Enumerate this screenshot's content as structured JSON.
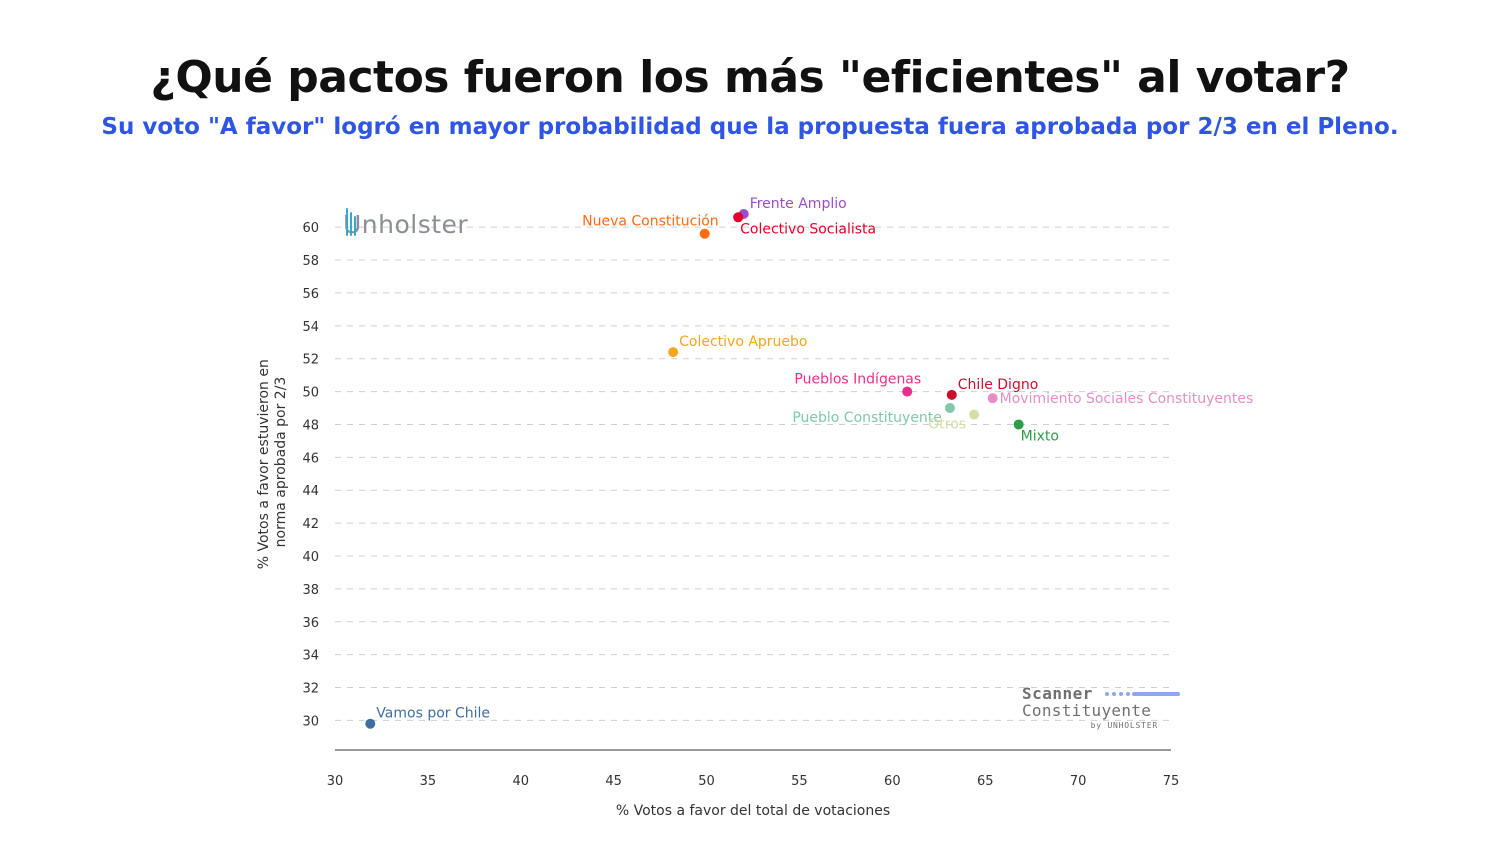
{
  "title": "¿Qué pactos fueron los más \"eficientes\" al votar?",
  "subtitle": "Su voto \"A favor\" logró en mayor probabilidad que la propuesta fuera aprobada por 2/3 en el Pleno.",
  "logos": {
    "unholster": "Unholster",
    "scanner_line1": "Scanner",
    "scanner_line2": "Constituyente",
    "scanner_line3": "by UNHOLSTER"
  },
  "chart_data": {
    "type": "scatter",
    "title": "¿Qué pactos fueron los más \"eficientes\" al votar?",
    "subtitle": "Su voto \"A favor\" logró en mayor probabilidad que la propuesta fuera aprobada por 2/3 en el Pleno.",
    "xlabel": "% Votos a favor del total de votaciones",
    "ylabel_line1": "% Votos a favor estuvieron en",
    "ylabel_line2": "norma aprobada por 2/3",
    "xlim": [
      30,
      75
    ],
    "ylim": [
      28.2,
      62.2
    ],
    "xticks": [
      30,
      35,
      40,
      45,
      50,
      55,
      60,
      65,
      70,
      75
    ],
    "yticks": [
      30,
      32,
      34,
      36,
      38,
      40,
      42,
      44,
      46,
      48,
      50,
      52,
      54,
      56,
      58,
      60
    ],
    "grid": "horizontal-dashed",
    "legend": "none (direct labels)",
    "points": [
      {
        "name": "Frente Amplio",
        "x": 52.0,
        "y": 60.8,
        "color": "#9b4dca",
        "label_pos": "upper-right"
      },
      {
        "name": "Colectivo Socialista",
        "x": 51.7,
        "y": 60.6,
        "color": "#e4002b",
        "label_pos": "lower-right"
      },
      {
        "name": "Nueva Constitución",
        "x": 49.9,
        "y": 59.6,
        "color": "#ff6a13",
        "label_pos": "upper-left"
      },
      {
        "name": "Colectivo Apruebo",
        "x": 48.2,
        "y": 52.4,
        "color": "#f7a51c",
        "label_pos": "upper-right"
      },
      {
        "name": "Pueblos Indígenas",
        "x": 60.8,
        "y": 50.0,
        "color": "#e6308a",
        "label_pos": "upper-left"
      },
      {
        "name": "Chile Digno",
        "x": 63.2,
        "y": 49.8,
        "color": "#c8102e",
        "label_pos": "upper-right"
      },
      {
        "name": "Movimiento Sociales Constituyentes",
        "x": 65.4,
        "y": 49.6,
        "color": "#e58fc4",
        "label_pos": "right"
      },
      {
        "name": "Pueblo Constituyente",
        "x": 63.1,
        "y": 49.0,
        "color": "#7fc8a9",
        "label_pos": "lower-left"
      },
      {
        "name": "Otros",
        "x": 64.4,
        "y": 48.6,
        "color": "#d4e0a6",
        "label_pos": "lower-left"
      },
      {
        "name": "Mixto",
        "x": 66.8,
        "y": 48.0,
        "color": "#2e9c4a",
        "label_pos": "lower-right"
      },
      {
        "name": "Vamos por Chile",
        "x": 31.9,
        "y": 29.8,
        "color": "#3d6fa3",
        "label_pos": "upper-right"
      }
    ]
  }
}
